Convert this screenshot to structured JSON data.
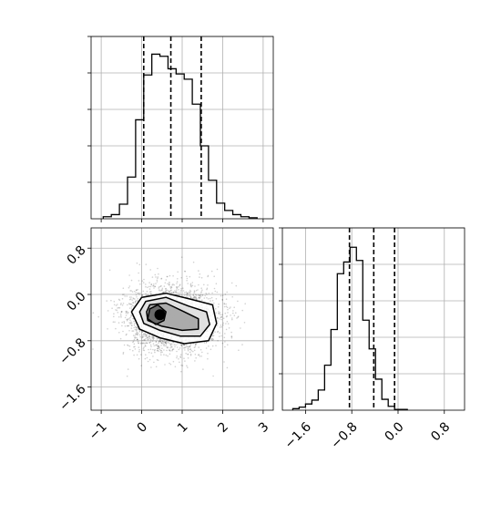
{
  "chart_data": {
    "type": "corner",
    "panels": [
      {
        "id": "hist_x",
        "type": "histogram",
        "xlim": [
          -1.25,
          3.25
        ],
        "bins": {
          "start": -0.95,
          "width": 0.2,
          "counts": [
            2,
            4,
            14,
            40,
            95,
            138,
            158,
            156,
            144,
            139,
            134,
            110,
            70,
            37,
            15,
            8,
            4,
            2,
            1
          ]
        },
        "ymax": 175,
        "quantiles": [
          0.05,
          0.72,
          1.47
        ],
        "grid": true,
        "y_tick_values": [
          35,
          70,
          105,
          140,
          175
        ],
        "show_tick_labels": false
      },
      {
        "id": "hist_y",
        "type": "histogram",
        "xlim": [
          -2.0,
          1.15
        ],
        "bins": {
          "start": -1.82,
          "width": 0.11,
          "counts": [
            2,
            4,
            8,
            13,
            26,
            58,
            104,
            176,
            191,
            210,
            193,
            116,
            79,
            40,
            14,
            5,
            1,
            1
          ]
        },
        "ymax": 235,
        "quantiles": [
          -0.84,
          -0.42,
          -0.06
        ],
        "grid": true,
        "x_ticks": [
          -1.6,
          -0.8,
          0.0,
          0.8
        ],
        "x_tick_labels": [
          "−1.6",
          "−0.8",
          "0.0",
          "0.8"
        ],
        "y_tick_values": [
          47,
          94,
          141,
          188,
          235
        ],
        "show_y_tick_labels": false
      },
      {
        "id": "scatter_xy",
        "type": "2d-density",
        "xlim": [
          -1.25,
          3.25
        ],
        "ylim": [
          -2.0,
          1.15
        ],
        "x_ticks": [
          -1,
          0,
          1,
          2,
          3
        ],
        "x_tick_labels": [
          "−1",
          "0",
          "1",
          "2",
          "3"
        ],
        "y_ticks": [
          -1.6,
          -0.8,
          0.0,
          0.8
        ],
        "y_tick_labels": [
          "−1.6",
          "−0.8",
          "0.0",
          "0.8"
        ],
        "grid": true,
        "points": {
          "count": 2600,
          "mean": [
            0.75,
            -0.42
          ],
          "sd": [
            0.55,
            0.3
          ]
        },
        "contours": [
          [
            [
              0.0,
              -0.05
            ],
            [
              0.6,
              0.02
            ],
            [
              1.2,
              -0.08
            ],
            [
              1.75,
              -0.18
            ],
            [
              1.85,
              -0.5
            ],
            [
              1.65,
              -0.8
            ],
            [
              1.05,
              -0.85
            ],
            [
              0.45,
              -0.75
            ],
            [
              -0.05,
              -0.6
            ],
            [
              -0.25,
              -0.3
            ]
          ],
          [
            [
              0.1,
              -0.12
            ],
            [
              0.6,
              -0.05
            ],
            [
              1.15,
              -0.2
            ],
            [
              1.6,
              -0.3
            ],
            [
              1.68,
              -0.52
            ],
            [
              1.45,
              -0.72
            ],
            [
              0.95,
              -0.72
            ],
            [
              0.45,
              -0.62
            ],
            [
              0.05,
              -0.5
            ],
            [
              -0.05,
              -0.3
            ]
          ],
          [
            [
              0.2,
              -0.18
            ],
            [
              0.6,
              -0.15
            ],
            [
              1.05,
              -0.3
            ],
            [
              1.4,
              -0.42
            ],
            [
              1.4,
              -0.6
            ],
            [
              1.0,
              -0.62
            ],
            [
              0.5,
              -0.55
            ],
            [
              0.15,
              -0.45
            ],
            [
              0.12,
              -0.3
            ]
          ],
          [
            [
              0.2,
              -0.25
            ],
            [
              0.4,
              -0.18
            ],
            [
              0.6,
              -0.3
            ],
            [
              0.55,
              -0.45
            ],
            [
              0.35,
              -0.52
            ],
            [
              0.15,
              -0.42
            ]
          ]
        ],
        "core": [
          0.45,
          -0.35
        ]
      }
    ]
  }
}
